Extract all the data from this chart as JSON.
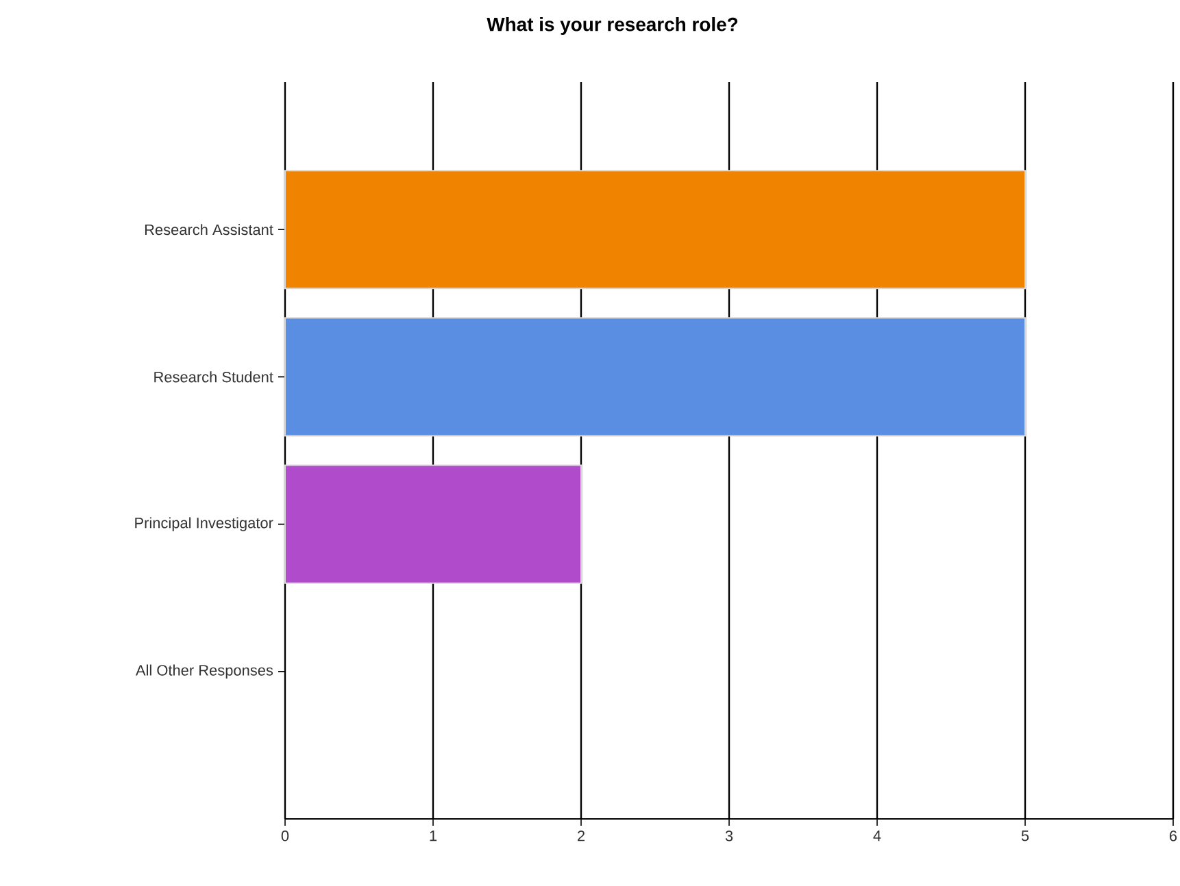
{
  "chart_data": {
    "type": "bar",
    "orientation": "horizontal",
    "title": "What is your research role?",
    "categories": [
      "Research Assistant",
      "Research Student",
      "Principal Investigator",
      "All Other Responses"
    ],
    "values": [
      5,
      5,
      2,
      0
    ],
    "colors": [
      "#f08400",
      "#5a8ee2",
      "#b04ccb",
      null
    ],
    "xlim": [
      0,
      6
    ],
    "xticks": [
      0,
      1,
      2,
      3,
      4,
      5,
      6
    ],
    "grid": "x"
  }
}
